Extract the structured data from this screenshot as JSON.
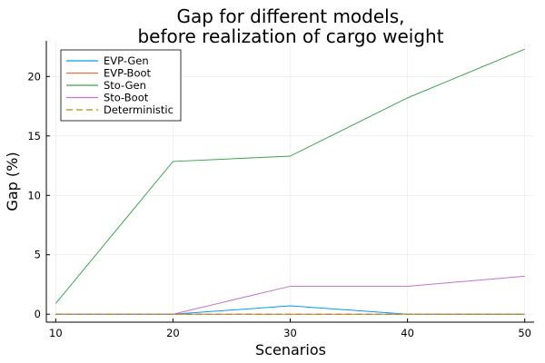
{
  "chart_data": {
    "type": "line",
    "title": [
      "Gap for different models,",
      "before realization of cargo weight"
    ],
    "xlabel": "Scenarios",
    "ylabel": "Gap (%)",
    "x": [
      10,
      20,
      30,
      40,
      50
    ],
    "xlim": [
      9.2,
      50.8
    ],
    "ylim": [
      -0.67,
      23.0
    ],
    "xticks": [
      10,
      20,
      30,
      40,
      50
    ],
    "yticks": [
      0,
      5,
      10,
      15,
      20
    ],
    "grid": true,
    "legend_position": "top-left",
    "series": [
      {
        "name": "EVP-Gen",
        "values": [
          0,
          0,
          0.7,
          0,
          0
        ],
        "color": "#009AFA",
        "dash": "solid"
      },
      {
        "name": "EVP-Boot",
        "values": [
          0,
          0,
          0,
          0,
          0
        ],
        "color": "#E26F46",
        "dash": "solid"
      },
      {
        "name": "Sto-Gen",
        "values": [
          0.9,
          12.85,
          13.3,
          18.2,
          22.3
        ],
        "color": "#3DA44D",
        "dash": "solid"
      },
      {
        "name": "Sto-Boot",
        "values": [
          0,
          0,
          2.35,
          2.35,
          3.2
        ],
        "color": "#C271D2",
        "dash": "solid"
      },
      {
        "name": "Deterministic",
        "values": [
          0,
          0,
          0,
          0,
          0
        ],
        "color": "#AC8E18",
        "dash": "dashed"
      }
    ]
  }
}
